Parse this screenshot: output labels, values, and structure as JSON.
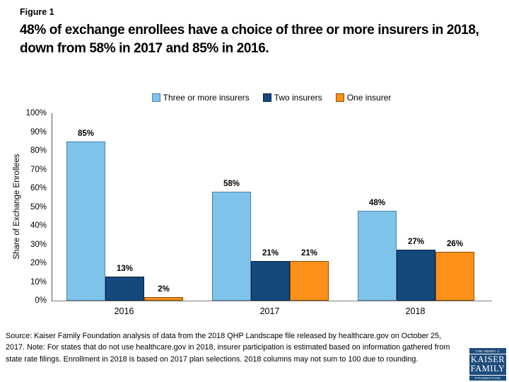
{
  "header": {
    "figure_label": "Figure 1",
    "title": "48% of exchange enrollees have a choice of three or more insurers in 2018, down from 58% in 2017 and 85% in 2016."
  },
  "chart_data": {
    "type": "bar",
    "categories": [
      "2016",
      "2017",
      "2018"
    ],
    "series": [
      {
        "name": "Three or more insurers",
        "color": "#7EC4EA",
        "border_color": "#4d80a6",
        "values": [
          85,
          58,
          48
        ]
      },
      {
        "name": "Two insurers",
        "color": "#15497E",
        "border_color": "#09233f",
        "values": [
          13,
          21,
          27
        ]
      },
      {
        "name": "One insurer",
        "color": "#FB9119",
        "border_color": "#8a4d07",
        "values": [
          2,
          21,
          26
        ]
      }
    ],
    "ylabel": "Share of Exchange Enrollees",
    "xlabel": "",
    "ylim": [
      0,
      100
    ],
    "yticks": [
      "0%",
      "10%",
      "20%",
      "30%",
      "40%",
      "50%",
      "60%",
      "70%",
      "80%",
      "90%",
      "100%"
    ],
    "value_suffix": "%",
    "legend_position": "top",
    "grid": false
  },
  "footer": {
    "source": "Source: Kaiser Family Foundation analysis of data from the 2018 QHP Landscape file released by healthcare.gov on October 25, 2017. Note: For states that do not use healthcare.gov in 2018, insurer participation is estimated based on information gathered from state rate filings. Enrollment in 2018 is based on 2017 plan selections. 2018 columns may not sum to 100 due to rounding.",
    "logo": {
      "top": "THE HENRY J.",
      "name_line1": "KAISER",
      "name_line2": "FAMILY",
      "bottom": "FOUNDATION"
    }
  }
}
